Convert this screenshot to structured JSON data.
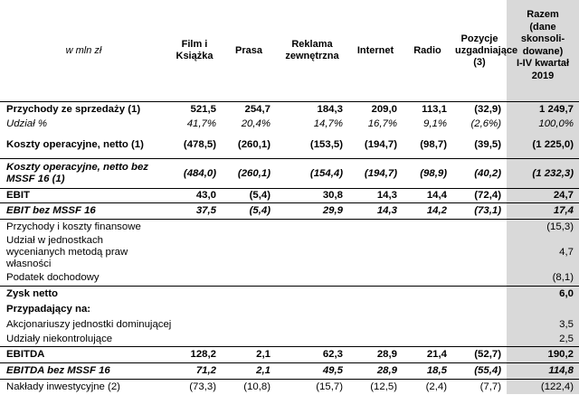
{
  "table": {
    "header": {
      "label": "w mln zł",
      "columns": [
        "Film i Książka",
        "Prasa",
        "Reklama zewnętrzna",
        "Internet",
        "Radio",
        "Pozycje uzgadniające (3)"
      ],
      "total": [
        "Razem",
        "(dane",
        "skonsoli-",
        "dowane)",
        "I-IV kwartał",
        "2019"
      ]
    },
    "rows": [
      {
        "label": "Przychody ze sprzedaży (1)",
        "values": [
          "521,5",
          "254,7",
          "184,3",
          "209,0",
          "113,1",
          "(32,9)"
        ],
        "total": "1 249,7"
      },
      {
        "label": "Udział %",
        "values": [
          "41,7%",
          "20,4%",
          "14,7%",
          "16,7%",
          "9,1%",
          "(2,6%)"
        ],
        "total": "100,0%"
      },
      {
        "label": "Koszty operacyjne, netto (1)",
        "values": [
          "(478,5)",
          "(260,1)",
          "(153,5)",
          "(194,7)",
          "(98,7)",
          "(39,5)"
        ],
        "total": "(1 225,0)"
      },
      {
        "label": "Koszty operacyjne, netto bez MSSF 16 (1)",
        "values": [
          "(484,0)",
          "(260,1)",
          "(154,4)",
          "(194,7)",
          "(98,9)",
          "(40,2)"
        ],
        "total": "(1 232,3)"
      },
      {
        "label": "EBIT",
        "values": [
          "43,0",
          "(5,4)",
          "30,8",
          "14,3",
          "14,4",
          "(72,4)"
        ],
        "total": "24,7"
      },
      {
        "label": "EBIT bez MSSF 16",
        "values": [
          "37,5",
          "(5,4)",
          "29,9",
          "14,3",
          "14,2",
          "(73,1)"
        ],
        "total": "17,4"
      },
      {
        "label": "Przychody i koszty finansowe",
        "values": [
          "",
          "",
          "",
          "",
          "",
          ""
        ],
        "total": "(15,3)"
      },
      {
        "label": "Udział w jednostkach wycenianych metodą praw własności",
        "values": [
          "",
          "",
          "",
          "",
          "",
          ""
        ],
        "total": "4,7"
      },
      {
        "label": "Podatek dochodowy",
        "values": [
          "",
          "",
          "",
          "",
          "",
          ""
        ],
        "total": "(8,1)"
      },
      {
        "label": "Zysk netto",
        "values": [
          "",
          "",
          "",
          "",
          "",
          ""
        ],
        "total": "6,0"
      },
      {
        "label": "Przypadający na:",
        "values": [
          "",
          "",
          "",
          "",
          "",
          ""
        ],
        "total": ""
      },
      {
        "label": "Akcjonariuszy jednostki dominującej",
        "values": [
          "",
          "",
          "",
          "",
          "",
          ""
        ],
        "total": "3,5"
      },
      {
        "label": "Udziały niekontrolujące",
        "values": [
          "",
          "",
          "",
          "",
          "",
          ""
        ],
        "total": "2,5"
      },
      {
        "label": "EBITDA",
        "values": [
          "128,2",
          "2,1",
          "62,3",
          "28,9",
          "21,4",
          "(52,7)"
        ],
        "total": "190,2"
      },
      {
        "label": "EBITDA bez MSSF 16",
        "values": [
          "71,2",
          "2,1",
          "49,5",
          "28,9",
          "18,5",
          "(55,4)"
        ],
        "total": "114,8"
      },
      {
        "label": "Nakłady inwestycyjne (2)",
        "values": [
          "(73,3)",
          "(10,8)",
          "(15,7)",
          "(12,5)",
          "(2,4)",
          "(7,7)"
        ],
        "total": "(122,4)"
      }
    ]
  }
}
